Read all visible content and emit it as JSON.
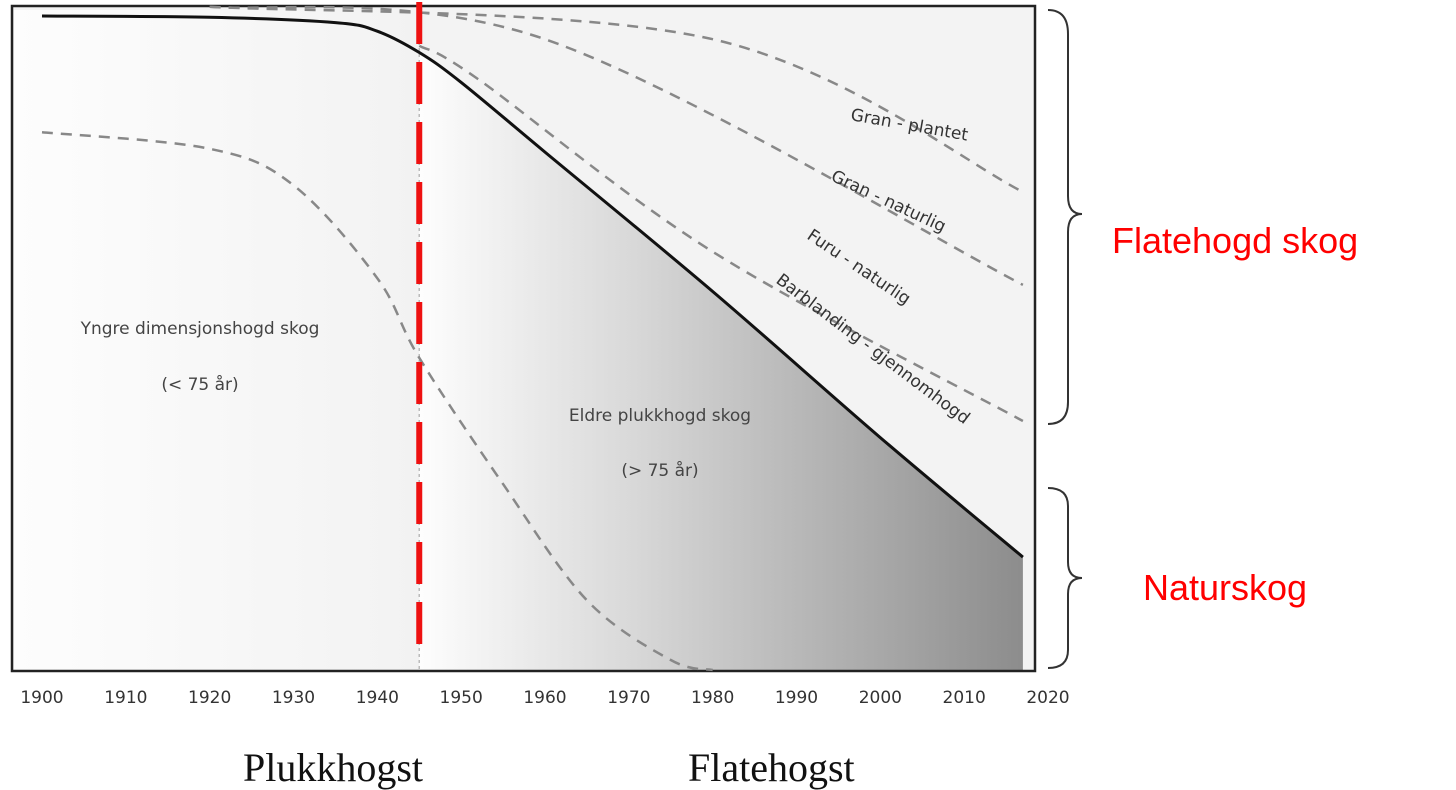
{
  "chart_data": {
    "type": "area",
    "xlim": [
      1900,
      2020
    ],
    "ylim": [
      0,
      100
    ],
    "x_ticks": [
      1900,
      1910,
      1920,
      1930,
      1940,
      1950,
      1960,
      1970,
      1980,
      1990,
      2000,
      2010,
      2020
    ],
    "grid": false,
    "boundary": {
      "x": [
        1900,
        1920,
        1935,
        1940,
        1945,
        1950,
        1960,
        1980,
        2000,
        2017
      ],
      "y": [
        98.5,
        98.3,
        97.5,
        96.2,
        93.0,
        88.5,
        78.0,
        57.0,
        35.0,
        17.0
      ]
    },
    "dashed_lines": [
      {
        "name": "Gran - plantet",
        "x": [
          1920,
          1980,
          2017
        ],
        "y": [
          99.9,
          95.0,
          72.0
        ]
      },
      {
        "name": "Gran - naturlig",
        "x": [
          1920,
          1960,
          2017
        ],
        "y": [
          99.9,
          95.0,
          58.0
        ]
      },
      {
        "name": "Furu - naturlig",
        "x": [
          1945,
          1952,
          1980,
          2017
        ],
        "y": [
          94.0,
          89.0,
          63.0,
          37.5
        ]
      },
      {
        "name": "",
        "x": [
          1900,
          1920,
          1930,
          1940,
          1945,
          1955,
          1965,
          1975,
          1980
        ],
        "y": [
          81.0,
          78.5,
          73.0,
          59.0,
          47.0,
          28.0,
          10.5,
          1.5,
          0.0
        ]
      }
    ],
    "cutoff_year": 1945,
    "regions": [
      {
        "label": "Yngre dimensjonshogd skog",
        "sublabel": "(< 75 år)"
      },
      {
        "label": "Eldre plukkhogd skog",
        "sublabel": "(> 75 år)"
      }
    ],
    "curve_labels": [
      "Gran - plantet",
      "Gran - naturlig",
      "Furu - naturlig",
      "Barblanding - gjennomhogd"
    ],
    "brackets": [
      {
        "label": "Flatehogd skog",
        "color": "#ff0000"
      },
      {
        "label": "Naturskog",
        "color": "#ff0000"
      }
    ],
    "era_labels": [
      "Plukkhogst",
      "Flatehogst"
    ],
    "colors": {
      "cutoff": "#ee1111",
      "boundary": "#111111",
      "dashed": "#888888",
      "shade_dark": "#888888"
    }
  }
}
